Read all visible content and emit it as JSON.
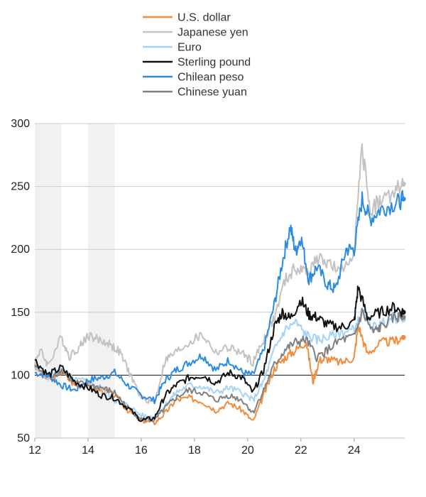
{
  "chart_data": {
    "type": "line",
    "title": "",
    "xlabel": "",
    "ylabel": "",
    "xlim": [
      2012.0,
      2025.9
    ],
    "ylim": [
      50,
      300
    ],
    "x_ticks": [
      {
        "value": 2012,
        "label": "12"
      },
      {
        "value": 2014,
        "label": "14"
      },
      {
        "value": 2016,
        "label": "16"
      },
      {
        "value": 2018,
        "label": "18"
      },
      {
        "value": 2020,
        "label": "20"
      },
      {
        "value": 2022,
        "label": "22"
      },
      {
        "value": 2024,
        "label": "24"
      }
    ],
    "y_ticks": [
      {
        "value": 50,
        "label": "50"
      },
      {
        "value": 100,
        "label": "100"
      },
      {
        "value": 150,
        "label": "150"
      },
      {
        "value": 200,
        "label": "200"
      },
      {
        "value": 250,
        "label": "250"
      },
      {
        "value": 300,
        "label": "300"
      }
    ],
    "grid": true,
    "reference_line": 100,
    "shaded_periods": [
      [
        2012.0,
        2013.0
      ],
      [
        2014.0,
        2015.0
      ]
    ],
    "legend_position": "top",
    "series": [
      {
        "name": "U.S. dollar",
        "color": "#f28c3c",
        "x": [
          2012.0,
          2012.5,
          2013.0,
          2013.5,
          2014.0,
          2014.5,
          2015.0,
          2015.5,
          2016.0,
          2016.5,
          2016.9,
          2017.3,
          2017.8,
          2018.3,
          2018.8,
          2019.3,
          2019.8,
          2020.2,
          2020.6,
          2021.0,
          2021.4,
          2021.8,
          2022.2,
          2022.45,
          2022.7,
          2023.0,
          2023.5,
          2024.0,
          2024.15,
          2024.5,
          2025.0,
          2025.5,
          2025.85
        ],
        "y": [
          107,
          96,
          103,
          92,
          92,
          88,
          84,
          72,
          64,
          62,
          70,
          80,
          82,
          79,
          72,
          78,
          72,
          63,
          84,
          105,
          114,
          120,
          127,
          95,
          112,
          113,
          110,
          114,
          140,
          117,
          126,
          127,
          130
        ]
      },
      {
        "name": "Japanese yen",
        "color": "#c2c2c2",
        "x": [
          2012.0,
          2012.2,
          2012.5,
          2013.0,
          2013.3,
          2013.7,
          2014.0,
          2014.4,
          2014.8,
          2015.2,
          2015.6,
          2016.0,
          2016.5,
          2016.9,
          2017.3,
          2017.8,
          2018.3,
          2018.8,
          2019.3,
          2019.8,
          2020.2,
          2020.6,
          2021.0,
          2021.4,
          2021.8,
          2022.2,
          2022.6,
          2023.0,
          2023.5,
          2024.0,
          2024.3,
          2024.6,
          2025.0,
          2025.5,
          2025.85
        ],
        "y": [
          110,
          120,
          108,
          130,
          115,
          123,
          132,
          128,
          125,
          118,
          100,
          82,
          78,
          112,
          118,
          126,
          132,
          118,
          122,
          117,
          110,
          128,
          145,
          175,
          185,
          182,
          192,
          190,
          180,
          200,
          280,
          232,
          238,
          245,
          252
        ]
      },
      {
        "name": "Euro",
        "color": "#a5d3f7",
        "x": [
          2012.0,
          2012.5,
          2013.0,
          2013.5,
          2014.0,
          2014.5,
          2015.0,
          2015.5,
          2016.0,
          2016.5,
          2016.9,
          2017.3,
          2017.8,
          2018.3,
          2018.8,
          2019.3,
          2019.8,
          2020.2,
          2020.6,
          2021.0,
          2021.4,
          2021.8,
          2022.2,
          2022.6,
          2023.0,
          2023.5,
          2024.0,
          2024.3,
          2024.7,
          2025.0,
          2025.5,
          2025.85
        ],
        "y": [
          105,
          98,
          104,
          96,
          95,
          90,
          80,
          76,
          68,
          66,
          76,
          86,
          92,
          91,
          86,
          90,
          86,
          80,
          95,
          120,
          136,
          142,
          132,
          128,
          130,
          134,
          136,
          150,
          138,
          140,
          146,
          144
        ]
      },
      {
        "name": "Sterling pound",
        "color": "#111111",
        "x": [
          2012.0,
          2012.5,
          2013.0,
          2013.5,
          2014.0,
          2014.5,
          2015.0,
          2015.5,
          2016.0,
          2016.5,
          2016.9,
          2017.3,
          2017.8,
          2018.3,
          2018.8,
          2019.3,
          2019.8,
          2020.2,
          2020.6,
          2021.0,
          2021.3,
          2021.6,
          2022.0,
          2022.3,
          2022.6,
          2023.0,
          2023.5,
          2024.0,
          2024.15,
          2024.5,
          2025.0,
          2025.5,
          2025.85
        ],
        "y": [
          112,
          100,
          106,
          95,
          90,
          84,
          82,
          74,
          64,
          66,
          84,
          92,
          98,
          100,
          94,
          102,
          98,
          86,
          104,
          138,
          150,
          145,
          160,
          148,
          146,
          140,
          138,
          142,
          170,
          146,
          150,
          154,
          150
        ]
      },
      {
        "name": "Chilean peso",
        "color": "#2b8be0",
        "x": [
          2012.0,
          2012.5,
          2013.0,
          2013.5,
          2014.0,
          2014.5,
          2015.0,
          2015.5,
          2016.0,
          2016.5,
          2016.9,
          2017.3,
          2017.8,
          2018.3,
          2018.8,
          2019.3,
          2019.8,
          2020.2,
          2020.6,
          2021.0,
          2021.3,
          2021.6,
          2021.8,
          2022.0,
          2022.3,
          2022.6,
          2023.0,
          2023.3,
          2023.7,
          2024.0,
          2024.3,
          2024.6,
          2025.0,
          2025.5,
          2025.85
        ],
        "y": [
          102,
          100,
          92,
          88,
          96,
          98,
          102,
          92,
          84,
          80,
          96,
          104,
          110,
          116,
          104,
          112,
          102,
          100,
          120,
          156,
          190,
          218,
          198,
          210,
          176,
          186,
          172,
          168,
          200,
          200,
          240,
          224,
          232,
          236,
          240
        ]
      },
      {
        "name": "Chinese yuan",
        "color": "#808080",
        "x": [
          2012.0,
          2012.5,
          2013.0,
          2013.5,
          2014.0,
          2014.5,
          2015.0,
          2015.5,
          2016.0,
          2016.5,
          2016.9,
          2017.3,
          2017.8,
          2018.3,
          2018.8,
          2019.3,
          2019.8,
          2020.2,
          2020.6,
          2021.0,
          2021.4,
          2021.8,
          2022.2,
          2022.6,
          2023.0,
          2023.5,
          2024.0,
          2024.3,
          2024.7,
          2025.0,
          2025.5,
          2025.85
        ],
        "y": [
          108,
          98,
          104,
          94,
          92,
          90,
          86,
          74,
          65,
          64,
          74,
          82,
          88,
          86,
          80,
          84,
          80,
          70,
          88,
          108,
          120,
          126,
          128,
          114,
          120,
          128,
          130,
          150,
          134,
          138,
          146,
          146
        ]
      }
    ]
  }
}
